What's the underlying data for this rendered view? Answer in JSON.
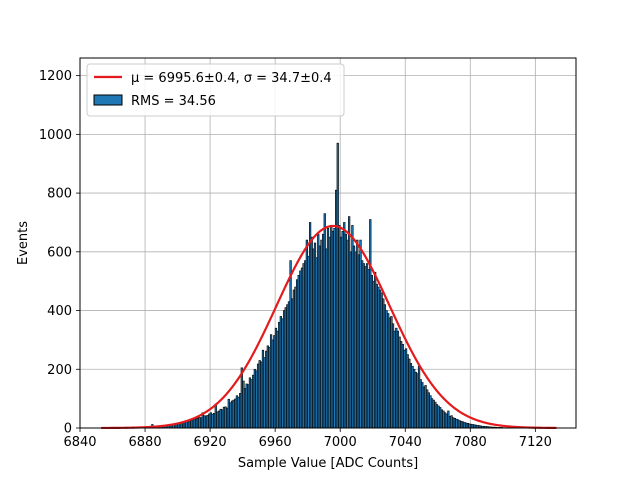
{
  "chart_data": {
    "type": "bar",
    "xlabel": "Sample Value [ADC Counts]",
    "ylabel": "Events",
    "xlim": [
      6840,
      7145
    ],
    "ylim": [
      0,
      1260
    ],
    "xticks": [
      "6840",
      "6880",
      "6920",
      "6960",
      "7000",
      "7040",
      "7080",
      "7120"
    ],
    "yticks": [
      "0",
      "200",
      "400",
      "600",
      "800",
      "1000",
      "1200"
    ],
    "grid": true,
    "legend_position": "top-left",
    "series": [
      {
        "name": "μ = 6995.6±0.4, σ = 34.7±0.4",
        "kind": "gaussian-fit-line",
        "color": "#e41a1c",
        "mu": 6995.6,
        "sigma": 34.7,
        "amplitude": 688,
        "x_range": [
          6853,
          7133
        ]
      },
      {
        "name": "RMS = 34.56",
        "kind": "histogram",
        "color": "#1f77b4",
        "edgecolor": "#000000",
        "bin_start": 6853,
        "bin_width": 1,
        "values": [
          0,
          0,
          0,
          0,
          0,
          0,
          0,
          0,
          0,
          1,
          1,
          1,
          1,
          2,
          1,
          1,
          2,
          2,
          2,
          1,
          2,
          2,
          3,
          2,
          3,
          3,
          4,
          4,
          4,
          4,
          4,
          12,
          5,
          5,
          6,
          6,
          7,
          7,
          8,
          9,
          9,
          10,
          11,
          12,
          13,
          14,
          15,
          16,
          17,
          18,
          19,
          20,
          22,
          23,
          24,
          26,
          28,
          30,
          32,
          34,
          36,
          35,
          52,
          42,
          41,
          43,
          48,
          52,
          47,
          50,
          82,
          55,
          58,
          64,
          62,
          71,
          72,
          68,
          98,
          86,
          92,
          95,
          99,
          110,
          105,
          118,
          205,
          160,
          135,
          150,
          148,
          171,
          165,
          180,
          200,
          195,
          218,
          230,
          225,
          265,
          240,
          262,
          280,
          275,
          318,
          300,
          315,
          340,
          330,
          360,
          380,
          372,
          400,
          410,
          420,
          430,
          570,
          440,
          470,
          480,
          505,
          520,
          535,
          545,
          560,
          570,
          640,
          585,
          700,
          650,
          610,
          630,
          580,
          660,
          620,
          640,
          660,
          730,
          610,
          680,
          650,
          690,
          670,
          680,
          810,
          970,
          690,
          650,
          670,
          700,
          660,
          640,
          720,
          600,
          690,
          620,
          600,
          640,
          590,
          640,
          570,
          560,
          550,
          560,
          540,
          710,
          520,
          500,
          530,
          490,
          480,
          470,
          460,
          440,
          420,
          400,
          390,
          375,
          380,
          355,
          330,
          340,
          330,
          310,
          295,
          285,
          265,
          270,
          250,
          235,
          220,
          210,
          200,
          190,
          185,
          210,
          165,
          155,
          140,
          145,
          130,
          120,
          110,
          100,
          95,
          88,
          80,
          75,
          70,
          62,
          58,
          52,
          48,
          58,
          40,
          42,
          35,
          33,
          30,
          28,
          25,
          23,
          21,
          19,
          17,
          16,
          14,
          13,
          12,
          11,
          10,
          9,
          8,
          7,
          6,
          6,
          5,
          5,
          4,
          4,
          3,
          3,
          3,
          2,
          2,
          2,
          2,
          1,
          1,
          1,
          1,
          1,
          1,
          0,
          0,
          1,
          0,
          0,
          0,
          0,
          0,
          0,
          0,
          0,
          0,
          0,
          0,
          0,
          0,
          0,
          0,
          0,
          0,
          0,
          0,
          0,
          0,
          0,
          0,
          0,
          0,
          0,
          0,
          0,
          0
        ]
      }
    ]
  }
}
